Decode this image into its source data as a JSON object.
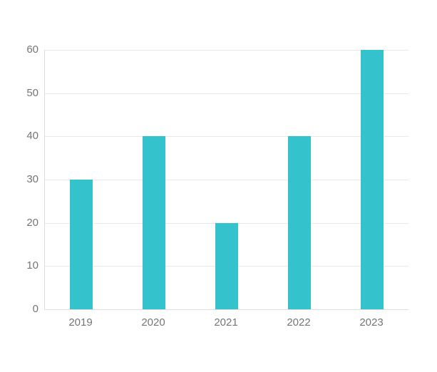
{
  "chart_data": {
    "type": "bar",
    "categories": [
      "2019",
      "2020",
      "2021",
      "2022",
      "2023"
    ],
    "values": [
      30,
      40,
      20,
      40,
      60
    ],
    "title": "",
    "xlabel": "",
    "ylabel": "",
    "ylim": [
      0,
      60
    ],
    "yticks": [
      0,
      10,
      20,
      30,
      40,
      50,
      60
    ],
    "grid": true,
    "legend": false,
    "colors": {
      "bar": "#34c3cd",
      "grid": "#e9e9e9",
      "axis": "#dedede",
      "text": "#757575",
      "background": "#ffffff"
    }
  }
}
